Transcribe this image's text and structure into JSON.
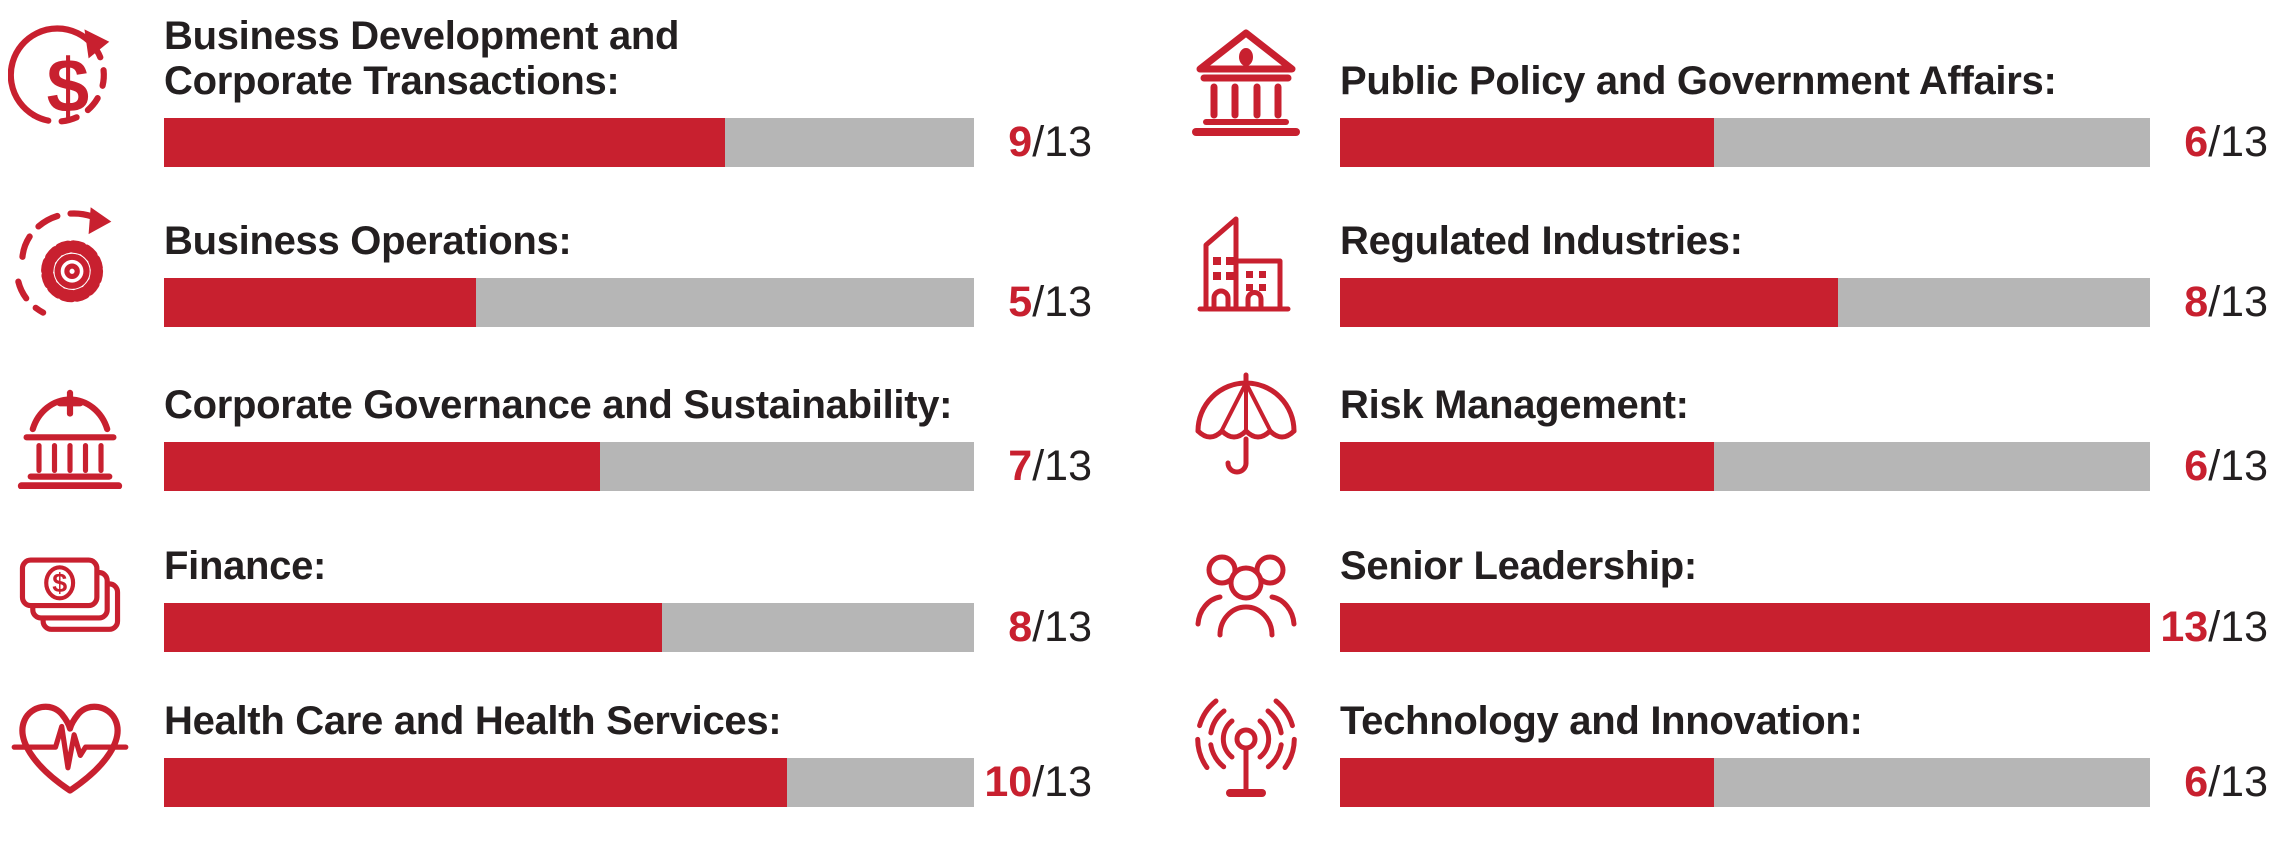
{
  "chart_data": {
    "type": "bar",
    "orientation": "horizontal",
    "layout": "two-column score infographic",
    "title": "",
    "value_suffix": "/13",
    "score_max": 13,
    "categories": [
      "Business Development and Corporate Transactions",
      "Business Operations",
      "Corporate Governance and Sustainability",
      "Finance",
      "Health Care and Health Services",
      "Public Policy and Government Affairs",
      "Regulated Industries",
      "Risk Management",
      "Senior Leadership",
      "Technology and Innovation"
    ],
    "values": [
      9,
      5,
      7,
      8,
      10,
      6,
      8,
      6,
      13,
      6
    ],
    "bar_color": "#C8202F",
    "track_color": "#B6B6B6",
    "grid": false,
    "legend": false
  },
  "colors": {
    "red": "#C8202F",
    "gray": "#B6B6B6",
    "ink": "#231F20",
    "background": "#FFFFFF"
  },
  "scale": {
    "suffix": "/13",
    "max": 13
  },
  "columns": {
    "left": {
      "items": [
        {
          "label": "Business Development and\nCorporate Transactions:",
          "value": 9,
          "max": 13,
          "icon": "dollar-cycle-icon"
        },
        {
          "label": "Business Operations:",
          "value": 5,
          "max": 13,
          "icon": "gear-cycle-icon"
        },
        {
          "label": "Corporate Governance and Sustainability:",
          "value": 7,
          "max": 13,
          "icon": "governance-dome-icon"
        },
        {
          "label": "Finance:",
          "value": 8,
          "max": 13,
          "icon": "banknotes-icon"
        },
        {
          "label": "Health Care and Health Services:",
          "value": 10,
          "max": 13,
          "icon": "heart-pulse-icon"
        }
      ]
    },
    "right": {
      "items": [
        {
          "label": "Public Policy and Government Affairs:",
          "value": 6,
          "max": 13,
          "icon": "government-building-icon"
        },
        {
          "label": "Regulated Industries:",
          "value": 8,
          "max": 13,
          "icon": "buildings-icon"
        },
        {
          "label": "Risk Management:",
          "value": 6,
          "max": 13,
          "icon": "umbrella-icon"
        },
        {
          "label": "Senior Leadership:",
          "value": 13,
          "max": 13,
          "icon": "people-group-icon"
        },
        {
          "label": "Technology and Innovation:",
          "value": 6,
          "max": 13,
          "icon": "antenna-signal-icon"
        }
      ]
    }
  }
}
